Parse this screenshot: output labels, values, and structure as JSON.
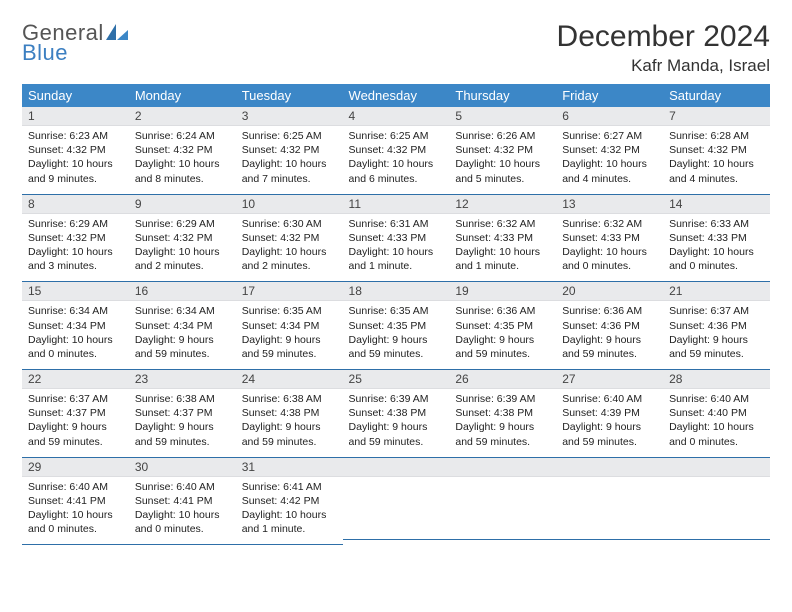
{
  "brand": {
    "part1": "General",
    "part2": "Blue"
  },
  "title": "December 2024",
  "location": "Kafr Manda, Israel",
  "colors": {
    "header_bg": "#3c87c7",
    "header_text": "#ffffff",
    "daynum_bg": "#e9eaec",
    "row_divider": "#2e6fa8",
    "brand_gray": "#555555",
    "brand_blue": "#3c7fc1"
  },
  "calendar": {
    "type": "table",
    "columns": [
      "Sunday",
      "Monday",
      "Tuesday",
      "Wednesday",
      "Thursday",
      "Friday",
      "Saturday"
    ],
    "font_size_header": 13,
    "font_size_daynum": 12,
    "font_size_body": 10.5,
    "weeks": [
      [
        {
          "n": "1",
          "sunrise": "Sunrise: 6:23 AM",
          "sunset": "Sunset: 4:32 PM",
          "day1": "Daylight: 10 hours",
          "day2": "and 9 minutes."
        },
        {
          "n": "2",
          "sunrise": "Sunrise: 6:24 AM",
          "sunset": "Sunset: 4:32 PM",
          "day1": "Daylight: 10 hours",
          "day2": "and 8 minutes."
        },
        {
          "n": "3",
          "sunrise": "Sunrise: 6:25 AM",
          "sunset": "Sunset: 4:32 PM",
          "day1": "Daylight: 10 hours",
          "day2": "and 7 minutes."
        },
        {
          "n": "4",
          "sunrise": "Sunrise: 6:25 AM",
          "sunset": "Sunset: 4:32 PM",
          "day1": "Daylight: 10 hours",
          "day2": "and 6 minutes."
        },
        {
          "n": "5",
          "sunrise": "Sunrise: 6:26 AM",
          "sunset": "Sunset: 4:32 PM",
          "day1": "Daylight: 10 hours",
          "day2": "and 5 minutes."
        },
        {
          "n": "6",
          "sunrise": "Sunrise: 6:27 AM",
          "sunset": "Sunset: 4:32 PM",
          "day1": "Daylight: 10 hours",
          "day2": "and 4 minutes."
        },
        {
          "n": "7",
          "sunrise": "Sunrise: 6:28 AM",
          "sunset": "Sunset: 4:32 PM",
          "day1": "Daylight: 10 hours",
          "day2": "and 4 minutes."
        }
      ],
      [
        {
          "n": "8",
          "sunrise": "Sunrise: 6:29 AM",
          "sunset": "Sunset: 4:32 PM",
          "day1": "Daylight: 10 hours",
          "day2": "and 3 minutes."
        },
        {
          "n": "9",
          "sunrise": "Sunrise: 6:29 AM",
          "sunset": "Sunset: 4:32 PM",
          "day1": "Daylight: 10 hours",
          "day2": "and 2 minutes."
        },
        {
          "n": "10",
          "sunrise": "Sunrise: 6:30 AM",
          "sunset": "Sunset: 4:32 PM",
          "day1": "Daylight: 10 hours",
          "day2": "and 2 minutes."
        },
        {
          "n": "11",
          "sunrise": "Sunrise: 6:31 AM",
          "sunset": "Sunset: 4:33 PM",
          "day1": "Daylight: 10 hours",
          "day2": "and 1 minute."
        },
        {
          "n": "12",
          "sunrise": "Sunrise: 6:32 AM",
          "sunset": "Sunset: 4:33 PM",
          "day1": "Daylight: 10 hours",
          "day2": "and 1 minute."
        },
        {
          "n": "13",
          "sunrise": "Sunrise: 6:32 AM",
          "sunset": "Sunset: 4:33 PM",
          "day1": "Daylight: 10 hours",
          "day2": "and 0 minutes."
        },
        {
          "n": "14",
          "sunrise": "Sunrise: 6:33 AM",
          "sunset": "Sunset: 4:33 PM",
          "day1": "Daylight: 10 hours",
          "day2": "and 0 minutes."
        }
      ],
      [
        {
          "n": "15",
          "sunrise": "Sunrise: 6:34 AM",
          "sunset": "Sunset: 4:34 PM",
          "day1": "Daylight: 10 hours",
          "day2": "and 0 minutes."
        },
        {
          "n": "16",
          "sunrise": "Sunrise: 6:34 AM",
          "sunset": "Sunset: 4:34 PM",
          "day1": "Daylight: 9 hours",
          "day2": "and 59 minutes."
        },
        {
          "n": "17",
          "sunrise": "Sunrise: 6:35 AM",
          "sunset": "Sunset: 4:34 PM",
          "day1": "Daylight: 9 hours",
          "day2": "and 59 minutes."
        },
        {
          "n": "18",
          "sunrise": "Sunrise: 6:35 AM",
          "sunset": "Sunset: 4:35 PM",
          "day1": "Daylight: 9 hours",
          "day2": "and 59 minutes."
        },
        {
          "n": "19",
          "sunrise": "Sunrise: 6:36 AM",
          "sunset": "Sunset: 4:35 PM",
          "day1": "Daylight: 9 hours",
          "day2": "and 59 minutes."
        },
        {
          "n": "20",
          "sunrise": "Sunrise: 6:36 AM",
          "sunset": "Sunset: 4:36 PM",
          "day1": "Daylight: 9 hours",
          "day2": "and 59 minutes."
        },
        {
          "n": "21",
          "sunrise": "Sunrise: 6:37 AM",
          "sunset": "Sunset: 4:36 PM",
          "day1": "Daylight: 9 hours",
          "day2": "and 59 minutes."
        }
      ],
      [
        {
          "n": "22",
          "sunrise": "Sunrise: 6:37 AM",
          "sunset": "Sunset: 4:37 PM",
          "day1": "Daylight: 9 hours",
          "day2": "and 59 minutes."
        },
        {
          "n": "23",
          "sunrise": "Sunrise: 6:38 AM",
          "sunset": "Sunset: 4:37 PM",
          "day1": "Daylight: 9 hours",
          "day2": "and 59 minutes."
        },
        {
          "n": "24",
          "sunrise": "Sunrise: 6:38 AM",
          "sunset": "Sunset: 4:38 PM",
          "day1": "Daylight: 9 hours",
          "day2": "and 59 minutes."
        },
        {
          "n": "25",
          "sunrise": "Sunrise: 6:39 AM",
          "sunset": "Sunset: 4:38 PM",
          "day1": "Daylight: 9 hours",
          "day2": "and 59 minutes."
        },
        {
          "n": "26",
          "sunrise": "Sunrise: 6:39 AM",
          "sunset": "Sunset: 4:38 PM",
          "day1": "Daylight: 9 hours",
          "day2": "and 59 minutes."
        },
        {
          "n": "27",
          "sunrise": "Sunrise: 6:40 AM",
          "sunset": "Sunset: 4:39 PM",
          "day1": "Daylight: 9 hours",
          "day2": "and 59 minutes."
        },
        {
          "n": "28",
          "sunrise": "Sunrise: 6:40 AM",
          "sunset": "Sunset: 4:40 PM",
          "day1": "Daylight: 10 hours",
          "day2": "and 0 minutes."
        }
      ],
      [
        {
          "n": "29",
          "sunrise": "Sunrise: 6:40 AM",
          "sunset": "Sunset: 4:41 PM",
          "day1": "Daylight: 10 hours",
          "day2": "and 0 minutes."
        },
        {
          "n": "30",
          "sunrise": "Sunrise: 6:40 AM",
          "sunset": "Sunset: 4:41 PM",
          "day1": "Daylight: 10 hours",
          "day2": "and 0 minutes."
        },
        {
          "n": "31",
          "sunrise": "Sunrise: 6:41 AM",
          "sunset": "Sunset: 4:42 PM",
          "day1": "Daylight: 10 hours",
          "day2": "and 1 minute."
        },
        {
          "n": "",
          "sunrise": "",
          "sunset": "",
          "day1": "",
          "day2": ""
        },
        {
          "n": "",
          "sunrise": "",
          "sunset": "",
          "day1": "",
          "day2": ""
        },
        {
          "n": "",
          "sunrise": "",
          "sunset": "",
          "day1": "",
          "day2": ""
        },
        {
          "n": "",
          "sunrise": "",
          "sunset": "",
          "day1": "",
          "day2": ""
        }
      ]
    ]
  }
}
